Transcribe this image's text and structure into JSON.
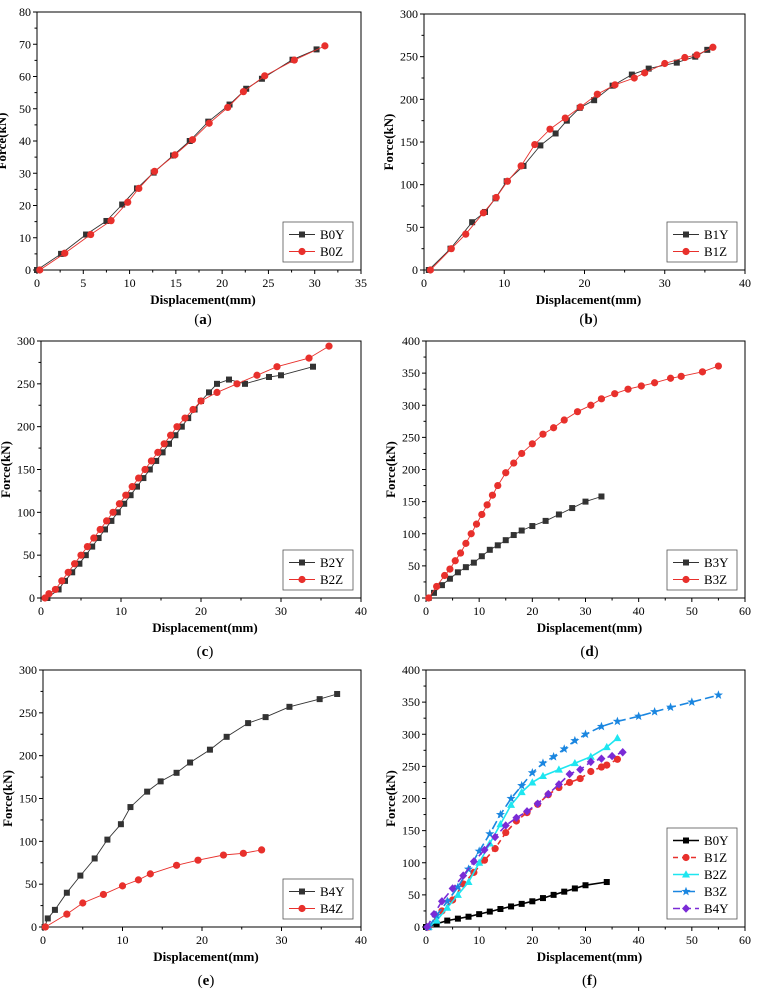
{
  "colors": {
    "black": "#333333",
    "red": "#e8302c",
    "cyan": "#1ee6f0",
    "blue": "#1a86e0",
    "purple": "#7a2bd6",
    "frame": "#000000"
  },
  "chart_data": [
    {
      "type": "line",
      "caption": [
        "(",
        "a",
        ")"
      ],
      "xlabel": "Displacement(mm)",
      "ylabel": "Force(kN)",
      "xlim": [
        0,
        35
      ],
      "ylim": [
        0,
        80
      ],
      "xticks": [
        0,
        5,
        10,
        15,
        20,
        25,
        30,
        35
      ],
      "yticks": [
        0,
        10,
        20,
        30,
        40,
        50,
        60,
        70,
        80
      ],
      "legend": "bottom-right",
      "grid": false,
      "series": [
        {
          "name": "B0Y",
          "color": "#333333",
          "marker": "square",
          "x": [
            0,
            2.6,
            5.3,
            7.5,
            9.2,
            10.8,
            12.6,
            14.7,
            16.5,
            18.5,
            20.8,
            22.6,
            24.3,
            27.6,
            30.2
          ],
          "y": [
            0,
            5,
            11,
            15.2,
            20.3,
            25.3,
            30.2,
            35.5,
            40,
            46,
            51.3,
            56.2,
            59.3,
            65.2,
            68.4
          ]
        },
        {
          "name": "B0Z",
          "color": "#e8302c",
          "marker": "circle",
          "x": [
            0.3,
            3.0,
            5.8,
            8.0,
            9.8,
            11.0,
            12.7,
            14.9,
            16.8,
            18.6,
            20.6,
            22.3,
            24.6,
            27.8,
            31.1
          ],
          "y": [
            0,
            5.2,
            11,
            15.3,
            21,
            25.3,
            30.6,
            35.7,
            40.4,
            45.5,
            50.4,
            55.3,
            60.2,
            65.1,
            69.5
          ]
        }
      ]
    },
    {
      "type": "line",
      "caption": [
        "(",
        "b",
        ")"
      ],
      "xlabel": "Displacement(mm)",
      "ylabel": "Force(kN)",
      "xlim": [
        0,
        40
      ],
      "ylim": [
        0,
        300
      ],
      "xticks": [
        0,
        10,
        20,
        30,
        40
      ],
      "yticks": [
        0,
        50,
        100,
        150,
        200,
        250,
        300
      ],
      "legend": "bottom-right",
      "grid": false,
      "series": [
        {
          "name": "B1Y",
          "color": "#333333",
          "marker": "square",
          "x": [
            0.6,
            3.3,
            6.0,
            7.6,
            8.9,
            10.3,
            12.4,
            14.5,
            16.4,
            17.8,
            19.4,
            21.2,
            23.5,
            25.9,
            28.0,
            31.5,
            33.8,
            35.3
          ],
          "y": [
            0,
            25,
            56,
            68,
            84,
            104,
            122,
            146,
            160,
            175,
            190,
            199,
            216,
            229,
            236,
            243,
            250,
            258
          ]
        },
        {
          "name": "B1Z",
          "color": "#e8302c",
          "marker": "circle",
          "x": [
            0.8,
            3.4,
            5.2,
            7.4,
            9.0,
            10.4,
            12.1,
            13.8,
            15.7,
            17.6,
            19.5,
            21.6,
            23.8,
            26.2,
            27.5,
            30.0,
            32.5,
            34.0,
            36.0
          ],
          "y": [
            0,
            25,
            42,
            67,
            85,
            104,
            122,
            147,
            165,
            178,
            191,
            206,
            217,
            225,
            231,
            242,
            249,
            252,
            261
          ]
        }
      ]
    },
    {
      "type": "line",
      "caption": [
        "(",
        "c",
        ")"
      ],
      "xlabel": "Displacement(mm)",
      "ylabel": "Force(kN)",
      "xlim": [
        0,
        40
      ],
      "ylim": [
        0,
        300
      ],
      "xticks": [
        0,
        10,
        20,
        30,
        40
      ],
      "yticks": [
        0,
        50,
        100,
        150,
        200,
        250,
        300
      ],
      "legend": "bottom-right",
      "grid": false,
      "series": [
        {
          "name": "B2Y",
          "color": "#333333",
          "marker": "square",
          "x": [
            0.8,
            2.2,
            3.0,
            3.9,
            4.8,
            5.6,
            6.4,
            7.2,
            8.0,
            8.8,
            9.6,
            10.4,
            11.2,
            12.0,
            12.8,
            13.6,
            14.4,
            15.2,
            16.0,
            16.8,
            17.6,
            18.4,
            19.2,
            20.0,
            21.0,
            22.0,
            23.5,
            25.5,
            28.5,
            30.0,
            34.0
          ],
          "y": [
            0,
            10,
            20,
            30,
            40,
            50,
            60,
            70,
            80,
            90,
            100,
            110,
            120,
            130,
            140,
            150,
            160,
            170,
            180,
            190,
            200,
            210,
            220,
            230,
            240,
            250,
            255,
            250,
            258,
            260,
            270
          ]
        },
        {
          "name": "B2Z",
          "color": "#e8302c",
          "marker": "circle",
          "x": [
            0.5,
            1.0,
            1.8,
            2.6,
            3.4,
            4.2,
            5.0,
            5.8,
            6.6,
            7.4,
            8.2,
            9.0,
            9.8,
            10.6,
            11.4,
            12.2,
            13.0,
            13.8,
            14.6,
            15.4,
            16.2,
            17.0,
            18.0,
            19.0,
            20.0,
            22.0,
            24.5,
            27.0,
            29.5,
            33.5,
            36.0
          ],
          "y": [
            0,
            5,
            10,
            20,
            30,
            40,
            50,
            60,
            70,
            80,
            90,
            100,
            110,
            120,
            130,
            140,
            150,
            160,
            170,
            180,
            190,
            200,
            210,
            220,
            230,
            240,
            250,
            260,
            270,
            280,
            294
          ]
        }
      ]
    },
    {
      "type": "line",
      "caption": [
        "(",
        "d",
        ")"
      ],
      "xlabel": "Displacement(mm)",
      "ylabel": "Force(kN)",
      "xlim": [
        0,
        60
      ],
      "ylim": [
        0,
        400
      ],
      "xticks": [
        0,
        10,
        20,
        30,
        40,
        50,
        60
      ],
      "yticks": [
        0,
        50,
        100,
        150,
        200,
        250,
        300,
        350,
        400
      ],
      "legend": "bottom-right",
      "grid": false,
      "series": [
        {
          "name": "B3Y",
          "color": "#333333",
          "marker": "square",
          "x": [
            0.5,
            1.5,
            3.0,
            4.5,
            6.0,
            7.5,
            9.0,
            10.5,
            12.0,
            13.5,
            15.0,
            16.5,
            18.0,
            20.0,
            22.5,
            25.0,
            27.5,
            30.0,
            33.0
          ],
          "y": [
            0,
            8,
            20,
            30,
            40,
            48,
            55,
            65,
            75,
            82,
            90,
            98,
            105,
            112,
            120,
            130,
            140,
            150,
            158
          ]
        },
        {
          "name": "B3Z",
          "color": "#e8302c",
          "marker": "circle",
          "x": [
            0.5,
            2.0,
            3.5,
            4.5,
            5.5,
            6.5,
            7.5,
            8.5,
            9.5,
            10.5,
            11.5,
            12.5,
            13.5,
            15.0,
            16.5,
            18.0,
            20.0,
            22.0,
            24.0,
            26.0,
            28.5,
            31.0,
            33.0,
            35.5,
            38.0,
            40.5,
            43.0,
            46.0,
            48.0,
            52.0,
            55.0
          ],
          "y": [
            0,
            18,
            35,
            45,
            58,
            70,
            85,
            100,
            115,
            130,
            145,
            160,
            175,
            195,
            210,
            225,
            240,
            255,
            265,
            277,
            290,
            300,
            310,
            318,
            325,
            330,
            335,
            342,
            345,
            352,
            361
          ]
        }
      ]
    },
    {
      "type": "line",
      "caption": [
        "(",
        "e",
        ")"
      ],
      "xlabel": "Displacement(mm)",
      "ylabel": "Force(kN)",
      "xlim": [
        0,
        40
      ],
      "ylim": [
        0,
        300
      ],
      "xticks": [
        0,
        10,
        20,
        30,
        40
      ],
      "yticks": [
        0,
        50,
        100,
        150,
        200,
        250,
        300
      ],
      "legend": "bottom-right",
      "grid": false,
      "series": [
        {
          "name": "B4Y",
          "color": "#333333",
          "marker": "square",
          "x": [
            0.2,
            0.6,
            1.5,
            3.0,
            4.7,
            6.5,
            8.1,
            9.8,
            11.0,
            13.1,
            14.8,
            16.8,
            18.5,
            21.0,
            23.1,
            25.8,
            28.0,
            31.0,
            34.8,
            37.0
          ],
          "y": [
            0,
            10,
            20,
            40,
            60,
            80,
            102,
            120,
            140,
            158,
            170,
            180,
            192,
            207,
            222,
            238,
            245,
            257,
            266,
            272
          ]
        },
        {
          "name": "B4Z",
          "color": "#e8302c",
          "marker": "circle",
          "x": [
            0.3,
            3.0,
            5.0,
            7.6,
            10.0,
            12.0,
            13.5,
            16.8,
            19.5,
            22.7,
            25.2,
            27.5
          ],
          "y": [
            0,
            15,
            28,
            38,
            48,
            55,
            62,
            72,
            78,
            84,
            86,
            90
          ]
        }
      ]
    },
    {
      "type": "line",
      "caption": [
        "(",
        "f",
        ")"
      ],
      "xlabel": "Displacement(mm)",
      "ylabel": "Force(kN)",
      "xlim": [
        0,
        60
      ],
      "ylim": [
        0,
        400
      ],
      "xticks": [
        0,
        10,
        20,
        30,
        40,
        50,
        60
      ],
      "yticks": [
        0,
        50,
        100,
        150,
        200,
        250,
        300,
        350,
        400
      ],
      "legend": "bottom-right",
      "grid": false,
      "series": [
        {
          "name": "B0Y",
          "color": "#000000",
          "marker": "square",
          "dash": "",
          "x": [
            0,
            2,
            4,
            6,
            8,
            10,
            12,
            14,
            16,
            18,
            20,
            22,
            24,
            26,
            28,
            30,
            34
          ],
          "y": [
            0,
            5,
            10,
            13,
            16,
            20,
            24,
            28,
            32,
            36,
            40,
            45,
            50,
            55,
            60,
            65,
            70
          ]
        },
        {
          "name": "B1Z",
          "color": "#e8302c",
          "marker": "circle",
          "dash": "5,4",
          "x": [
            0.5,
            3,
            5,
            7,
            9,
            11,
            13,
            15,
            17,
            19,
            21,
            23,
            25,
            27,
            29,
            31,
            33,
            34,
            36
          ],
          "y": [
            0,
            25,
            42,
            67,
            85,
            104,
            122,
            147,
            165,
            178,
            191,
            206,
            217,
            225,
            231,
            242,
            249,
            252,
            261
          ]
        },
        {
          "name": "B2Z",
          "color": "#1ee6f0",
          "marker": "triangle",
          "dash": "",
          "x": [
            0.5,
            2,
            4,
            6,
            8,
            10,
            12,
            14,
            16,
            18,
            20,
            22,
            25,
            28,
            31,
            34,
            36
          ],
          "y": [
            0,
            10,
            30,
            50,
            70,
            100,
            130,
            160,
            190,
            210,
            225,
            235,
            245,
            255,
            265,
            280,
            294
          ]
        },
        {
          "name": "B3Z",
          "color": "#1a86e0",
          "marker": "star",
          "dash": "9,4",
          "x": [
            0.5,
            2,
            4,
            6,
            8,
            10,
            12,
            14,
            16,
            18,
            20,
            22,
            24,
            26,
            28,
            30,
            33,
            36,
            40,
            43,
            46,
            50,
            55
          ],
          "y": [
            0,
            18,
            40,
            62,
            90,
            118,
            145,
            175,
            200,
            220,
            240,
            255,
            265,
            277,
            290,
            300,
            312,
            320,
            328,
            335,
            342,
            350,
            361
          ]
        },
        {
          "name": "B4Y",
          "color": "#7a2bd6",
          "marker": "diamond",
          "dash": "7,4",
          "x": [
            0.2,
            1.5,
            3,
            5,
            7,
            9,
            11,
            13,
            15,
            17,
            19,
            21,
            23,
            25,
            27,
            29,
            31,
            33,
            35,
            37
          ],
          "y": [
            0,
            20,
            40,
            60,
            80,
            102,
            120,
            140,
            158,
            170,
            180,
            192,
            207,
            222,
            238,
            245,
            257,
            262,
            266,
            272
          ]
        }
      ]
    }
  ]
}
